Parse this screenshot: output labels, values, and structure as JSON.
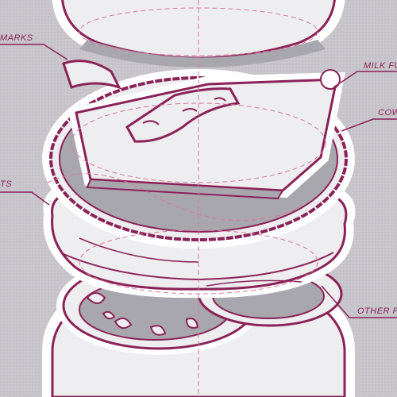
{
  "labels": [
    {
      "id": "grill-marks",
      "text": "MARKS"
    },
    {
      "id": "milk-fed",
      "text": "MILK FU"
    },
    {
      "id": "cow",
      "text": "COW"
    },
    {
      "id": "fats",
      "text": "TS"
    },
    {
      "id": "other",
      "text": "OTHER P"
    }
  ],
  "colors": {
    "background": "#c9c7cc",
    "outline": "#8b2257",
    "fill_light": "#eeedef",
    "shadow": "#a9a7ae",
    "guide": "#d9789b"
  }
}
